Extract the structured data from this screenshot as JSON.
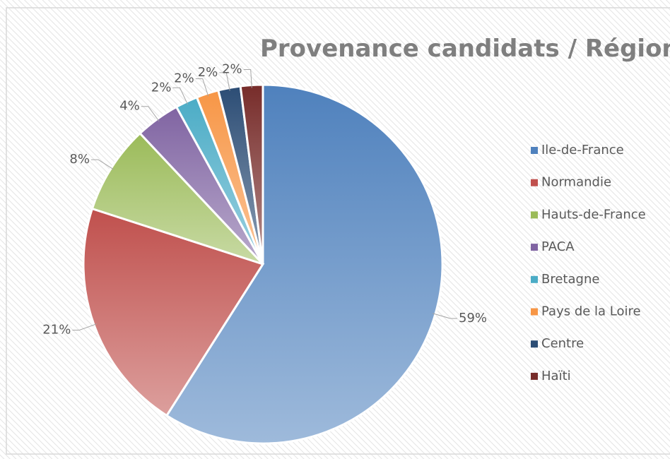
{
  "chart_data": {
    "type": "pie",
    "title": "Provenance candidats / Région",
    "categories": [
      "Ile-de-France",
      "Normandie",
      "Hauts-de-France",
      "PACA",
      "Bretagne",
      "Pays de la Loire",
      "Centre",
      "Haïti"
    ],
    "values": [
      59,
      21,
      8,
      4,
      2,
      2,
      2,
      2
    ],
    "value_labels": [
      "59%",
      "21%",
      "8%",
      "4%",
      "2%",
      "2%",
      "2%",
      "2%"
    ],
    "colors": [
      "#4f81bd",
      "#c0504d",
      "#9bbb59",
      "#8064a2",
      "#4bacc6",
      "#f79646",
      "#2c4d75",
      "#772c2a"
    ],
    "legend": "right"
  }
}
